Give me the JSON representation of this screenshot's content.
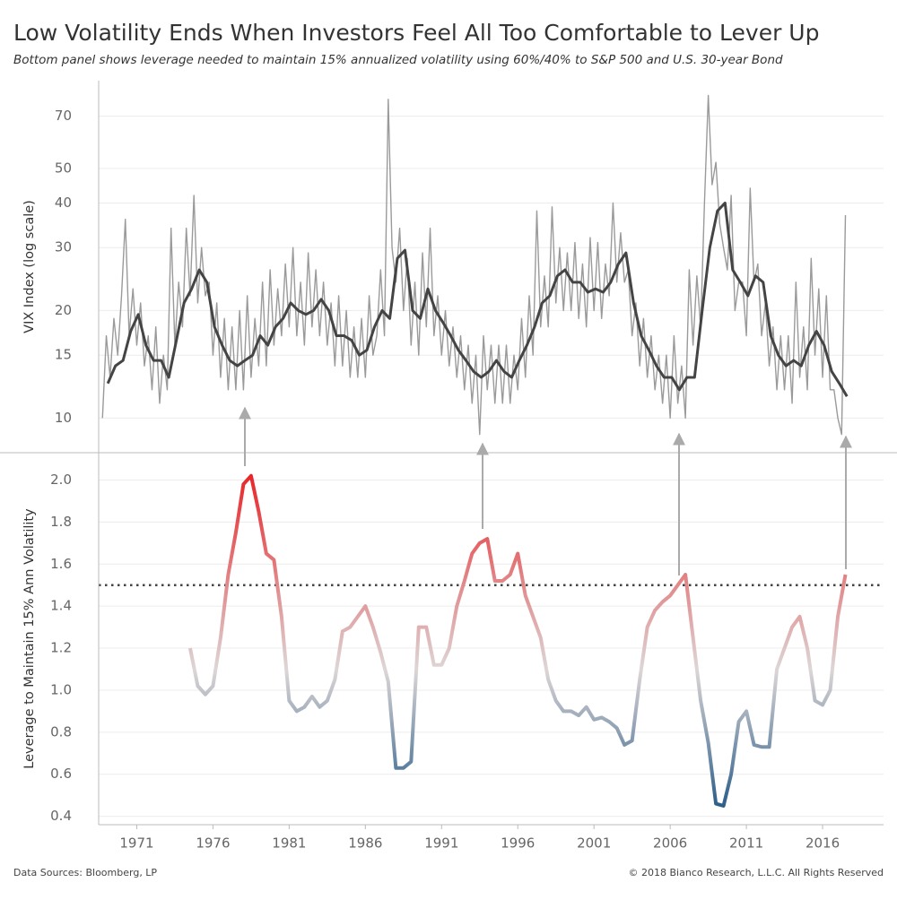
{
  "title": "Low Volatility Ends When Investors Feel All Too Comfortable to Lever Up",
  "subtitle": "Bottom panel shows leverage needed to maintain 15% annualized volatility using 60%/40% to S&P 500 and U.S. 30-year Bond",
  "footer": {
    "source": "Data Sources: Bloomberg, LP",
    "copyright": "© 2018 Bianco Research, L.L.C. All Rights Reserved"
  },
  "chart_data": [
    {
      "type": "line",
      "ylabel": "VIX Index (log scale)",
      "log_scale": true,
      "grid": true,
      "xlim": [
        1968.5,
        2020
      ],
      "ylim": [
        8,
        88
      ],
      "yticks": [
        10,
        15,
        20,
        30,
        40,
        50,
        70
      ],
      "series": [
        {
          "color": "#9a9a9a",
          "x": [
            1968.75,
            1969,
            1969.25,
            1969.5,
            1969.75,
            1970,
            1970.25,
            1970.5,
            1970.75,
            1971,
            1971.25,
            1971.5,
            1971.75,
            1972,
            1972.25,
            1972.5,
            1972.75,
            1973,
            1973.25,
            1973.5,
            1973.75,
            1974,
            1974.25,
            1974.5,
            1974.75,
            1975,
            1975.25,
            1975.5,
            1975.75,
            1976,
            1976.25,
            1976.5,
            1976.75,
            1977,
            1977.25,
            1977.5,
            1977.75,
            1978,
            1978.25,
            1978.5,
            1978.75,
            1979,
            1979.25,
            1979.5,
            1979.75,
            1980,
            1980.25,
            1980.5,
            1980.75,
            1981,
            1981.25,
            1981.5,
            1981.75,
            1982,
            1982.25,
            1982.5,
            1982.75,
            1983,
            1983.25,
            1983.5,
            1983.75,
            1984,
            1984.25,
            1984.5,
            1984.75,
            1985,
            1985.25,
            1985.5,
            1985.75,
            1986,
            1986.25,
            1986.5,
            1986.75,
            1987,
            1987.25,
            1987.5,
            1987.75,
            1988,
            1988.25,
            1988.5,
            1988.75,
            1989,
            1989.25,
            1989.5,
            1989.75,
            1990,
            1990.25,
            1990.5,
            1990.75,
            1991,
            1991.25,
            1991.5,
            1991.75,
            1992,
            1992.25,
            1992.5,
            1992.75,
            1993,
            1993.25,
            1993.5,
            1993.75,
            1994,
            1994.25,
            1994.5,
            1994.75,
            1995,
            1995.25,
            1995.5,
            1995.75,
            1996,
            1996.25,
            1996.5,
            1996.75,
            1997,
            1997.25,
            1997.5,
            1997.75,
            1998,
            1998.25,
            1998.5,
            1998.75,
            1999,
            1999.25,
            1999.5,
            1999.75,
            2000,
            2000.25,
            2000.5,
            2000.75,
            2001,
            2001.25,
            2001.5,
            2001.75,
            2002,
            2002.25,
            2002.5,
            2002.75,
            2003,
            2003.25,
            2003.5,
            2003.75,
            2004,
            2004.25,
            2004.5,
            2004.75,
            2005,
            2005.25,
            2005.5,
            2005.75,
            2006,
            2006.25,
            2006.5,
            2006.75,
            2007,
            2007.25,
            2007.5,
            2007.75,
            2008,
            2008.25,
            2008.5,
            2008.75,
            2009,
            2009.25,
            2009.5,
            2009.75,
            2010,
            2010.25,
            2010.5,
            2010.75,
            2011,
            2011.25,
            2011.5,
            2011.75,
            2012,
            2012.25,
            2012.5,
            2012.75,
            2013,
            2013.25,
            2013.5,
            2013.75,
            2014,
            2014.25,
            2014.5,
            2014.75,
            2015,
            2015.25,
            2015.5,
            2015.75,
            2016,
            2016.25,
            2016.5,
            2016.75,
            2017,
            2017.25,
            2017.5
          ],
          "values": [
            10,
            17,
            13,
            19,
            15,
            22,
            36,
            17,
            23,
            16,
            21,
            14,
            17,
            12,
            18,
            11,
            15,
            12,
            34,
            16,
            24,
            18,
            34,
            22,
            42,
            21,
            30,
            22,
            24,
            15,
            21,
            13,
            19,
            12,
            18,
            12,
            20,
            12,
            22,
            13,
            19,
            14,
            24,
            14,
            26,
            16,
            23,
            17,
            27,
            18,
            30,
            17,
            24,
            16,
            29,
            18,
            26,
            17,
            24,
            16,
            21,
            14,
            22,
            14,
            20,
            13,
            18,
            13,
            19,
            13,
            22,
            15,
            17,
            26,
            17,
            78,
            30,
            24,
            34,
            20,
            28,
            16,
            24,
            15,
            29,
            18,
            34,
            17,
            22,
            15,
            20,
            14,
            18,
            13,
            17,
            12,
            16,
            11,
            15,
            9,
            17,
            12,
            16,
            11,
            16,
            11,
            16,
            11,
            15,
            12,
            19,
            13,
            22,
            15,
            38,
            18,
            25,
            18,
            39,
            21,
            30,
            20,
            29,
            20,
            31,
            19,
            27,
            18,
            32,
            20,
            31,
            19,
            27,
            22,
            40,
            24,
            33,
            24,
            26,
            17,
            21,
            14,
            19,
            13,
            17,
            12,
            15,
            11,
            15,
            10,
            17,
            11,
            14,
            10,
            26,
            16,
            25,
            18,
            40,
            80,
            45,
            52,
            35,
            30,
            26,
            42,
            20,
            24,
            24,
            17,
            44,
            24,
            27,
            17,
            21,
            14,
            18,
            12,
            17,
            12,
            17,
            11,
            24,
            13,
            18,
            12,
            28,
            15,
            23,
            13,
            22,
            12,
            12,
            10,
            9,
            37
          ]
        },
        {
          "color": "#444444",
          "x": [
            1969.1,
            1969.6,
            1970.1,
            1970.6,
            1971.1,
            1971.6,
            1972.1,
            1972.6,
            1973.1,
            1973.6,
            1974.1,
            1974.6,
            1975.1,
            1975.6,
            1976.1,
            1976.6,
            1977.1,
            1977.6,
            1978.1,
            1978.6,
            1979.1,
            1979.6,
            1980.1,
            1980.6,
            1981.1,
            1981.6,
            1982.1,
            1982.6,
            1983.1,
            1983.6,
            1984.1,
            1984.6,
            1985.1,
            1985.6,
            1986.1,
            1986.6,
            1987.1,
            1987.6,
            1988.1,
            1988.6,
            1989.1,
            1989.6,
            1990.1,
            1990.6,
            1991.1,
            1991.6,
            1992.1,
            1992.6,
            1993.1,
            1993.6,
            1994.1,
            1994.6,
            1995.1,
            1995.6,
            1996.1,
            1996.6,
            1997.1,
            1997.6,
            1998.1,
            1998.6,
            1999.1,
            1999.6,
            2000.1,
            2000.6,
            2001.1,
            2001.6,
            2002.1,
            2002.6,
            2003.1,
            2003.6,
            2004.1,
            2004.6,
            2005.1,
            2005.6,
            2006.1,
            2006.6,
            2007.1,
            2007.6,
            2008.1,
            2008.6,
            2009.1,
            2009.6,
            2010.1,
            2010.6,
            2011.1,
            2011.6,
            2012.1,
            2012.6,
            2013.1,
            2013.6,
            2014.1,
            2014.6,
            2015.1,
            2015.6,
            2016.1,
            2016.6,
            2017.1,
            2017.6
          ],
          "values": [
            12.5,
            14,
            14.5,
            17.5,
            19.5,
            16,
            14.5,
            14.5,
            13,
            16.5,
            21,
            23,
            26,
            24,
            18,
            16,
            14.5,
            14,
            14.5,
            15,
            17,
            16,
            18,
            19,
            21,
            20,
            19.5,
            20,
            21.5,
            20,
            17,
            17,
            16.5,
            15,
            15.5,
            18,
            20,
            19,
            28,
            29.5,
            20,
            19,
            23,
            20,
            18.5,
            17,
            15.5,
            14.5,
            13.5,
            13,
            13.5,
            14.5,
            13.5,
            13,
            14.5,
            16,
            18,
            21,
            22,
            25,
            26,
            24,
            24,
            22.5,
            23,
            22.5,
            24,
            27,
            29,
            21,
            17,
            15.5,
            14,
            13,
            13,
            12,
            13,
            13,
            20,
            30,
            38,
            40,
            26,
            24,
            22,
            25,
            24,
            17,
            15,
            14,
            14.5,
            14,
            16,
            17.5,
            16,
            13.5,
            12.5,
            11.5
          ]
        }
      ]
    },
    {
      "type": "line",
      "ylabel": "Leverage to Maintain 15% Ann Volatility",
      "grid": true,
      "xlim": [
        1968.5,
        2020
      ],
      "ylim": [
        0.36,
        2.13
      ],
      "yticks": [
        {
          "value": 0.4,
          "label": "0.4"
        },
        {
          "value": 0.6,
          "label": "0.6"
        },
        {
          "value": 0.8,
          "label": "0.8"
        },
        {
          "value": 1,
          "label": "1.0"
        },
        {
          "value": 1.2,
          "label": "1.2"
        },
        {
          "value": 1.4,
          "label": "1.4"
        },
        {
          "value": 1.6,
          "label": "1.6"
        },
        {
          "value": 1.8,
          "label": "1.8"
        },
        {
          "value": 2,
          "label": "2.0"
        }
      ],
      "xticks": [
        1971,
        1976,
        1981,
        1986,
        1991,
        1996,
        2001,
        2006,
        2011,
        2016
      ],
      "reference_line": 1.5,
      "series": [
        {
          "color_scale": {
            "low": "#2d5f8a",
            "mid": "#ddd6d6",
            "high": "#e8262a",
            "center": 1.1
          },
          "x": [
            1974.5,
            1975,
            1975.5,
            1976,
            1976.5,
            1977,
            1977.5,
            1978,
            1978.5,
            1979,
            1979.5,
            1980,
            1980.5,
            1981,
            1981.5,
            1982,
            1982.5,
            1983,
            1983.5,
            1984,
            1984.5,
            1985,
            1985.5,
            1986,
            1986.5,
            1987,
            1987.5,
            1988,
            1988.5,
            1989,
            1989.5,
            1990,
            1990.5,
            1991,
            1991.5,
            1992,
            1992.5,
            1993,
            1993.5,
            1994,
            1994.5,
            1995,
            1995.5,
            1996,
            1996.5,
            1997,
            1997.5,
            1998,
            1998.5,
            1999,
            1999.5,
            2000,
            2000.5,
            2001,
            2001.5,
            2002,
            2002.5,
            2003,
            2003.5,
            2004,
            2004.5,
            2005,
            2005.5,
            2006,
            2006.5,
            2007,
            2007.5,
            2008,
            2008.5,
            2009,
            2009.5,
            2010,
            2010.5,
            2011,
            2011.5,
            2012,
            2012.5,
            2013,
            2013.5,
            2014,
            2014.5,
            2015,
            2015.5,
            2016,
            2016.5,
            2017,
            2017.5
          ],
          "values": [
            1.2,
            1.02,
            0.98,
            1.02,
            1.25,
            1.55,
            1.75,
            1.98,
            2.02,
            1.85,
            1.65,
            1.62,
            1.35,
            0.95,
            0.9,
            0.92,
            0.97,
            0.92,
            0.95,
            1.05,
            1.28,
            1.3,
            1.35,
            1.4,
            1.3,
            1.18,
            1.04,
            0.63,
            0.63,
            0.66,
            1.3,
            1.3,
            1.12,
            1.12,
            1.2,
            1.4,
            1.52,
            1.65,
            1.7,
            1.72,
            1.52,
            1.52,
            1.55,
            1.65,
            1.45,
            1.35,
            1.25,
            1.05,
            0.95,
            0.9,
            0.9,
            0.88,
            0.92,
            0.86,
            0.87,
            0.85,
            0.82,
            0.74,
            0.76,
            1.05,
            1.3,
            1.38,
            1.42,
            1.45,
            1.5,
            1.55,
            1.25,
            0.95,
            0.75,
            0.46,
            0.45,
            0.6,
            0.85,
            0.9,
            0.74,
            0.73,
            0.73,
            1.1,
            1.2,
            1.3,
            1.35,
            1.2,
            0.95,
            0.93,
            1,
            1.35,
            1.55
          ]
        }
      ]
    }
  ]
}
